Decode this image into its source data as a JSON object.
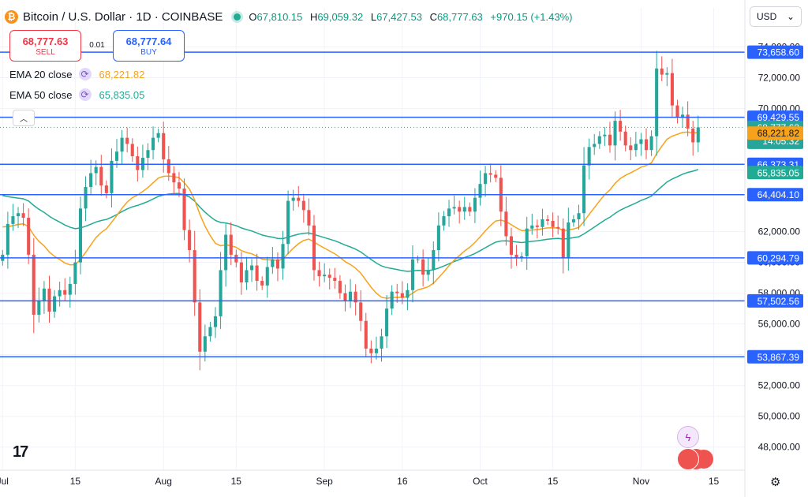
{
  "header": {
    "coin_glyph": "₿",
    "symbol": "Bitcoin / U.S. Dollar · 1D · COINBASE",
    "open_label": "O",
    "open": "67,810.15",
    "high_label": "H",
    "high": "69,059.32",
    "low_label": "L",
    "low": "67,427.53",
    "close_label": "C",
    "close": "68,777.63",
    "change": "+970.15 (+1.43%)"
  },
  "currency": {
    "value": "USD",
    "chevron": "⌄"
  },
  "trade": {
    "sell_price": "68,777.63",
    "sell_label": "SELL",
    "spread": "0.01",
    "buy_price": "68,777.64",
    "buy_label": "BUY"
  },
  "indicators": [
    {
      "name": "EMA 20 close",
      "value": "68,221.82",
      "color": "#f7a21b"
    },
    {
      "name": "EMA 50 close",
      "value": "65,835.05",
      "color": "#22ab94"
    }
  ],
  "icons": {
    "collapse": "︿",
    "cycle": "⟳",
    "settings": "⚙",
    "flash": "ϟ",
    "logo": "17"
  },
  "colors": {
    "up": "#26a69a",
    "down": "#ef5350",
    "hline": "#2962ff",
    "ema20": "#f7a21b",
    "ema50": "#22ab94",
    "grid": "#f0f3fa"
  },
  "chart_data": {
    "type": "candlestick",
    "title": "Bitcoin / U.S. Dollar · 1D · COINBASE",
    "y_ticks": [
      48000,
      50000,
      52000,
      54000,
      56000,
      58000,
      60000,
      62000,
      66000,
      70000,
      72000,
      74000
    ],
    "ylim": [
      46500,
      75000
    ],
    "x_ticks": [
      {
        "label": "Jul",
        "day": 0
      },
      {
        "label": "15",
        "day": 14
      },
      {
        "label": "Aug",
        "day": 31
      },
      {
        "label": "15",
        "day": 45
      },
      {
        "label": "Sep",
        "day": 62
      },
      {
        "label": "16",
        "day": 77
      },
      {
        "label": "Oct",
        "day": 92
      },
      {
        "label": "15",
        "day": 106
      },
      {
        "label": "Nov",
        "day": 123
      },
      {
        "label": "15",
        "day": 137
      }
    ],
    "xlim": [
      -0.5,
      143
    ],
    "horizontal_levels": [
      {
        "value": 73658.6,
        "label": "73,658.60"
      },
      {
        "value": 69429.55,
        "label": "69,429.55"
      },
      {
        "value": 66373.31,
        "label": "66,373.31"
      },
      {
        "value": 64404.1,
        "label": "64,404.10"
      },
      {
        "value": 60294.79,
        "label": "60,294.79"
      },
      {
        "value": 57502.56,
        "label": "57,502.56"
      },
      {
        "value": 53867.39,
        "label": "53,867.39"
      }
    ],
    "last_price": {
      "value": 68777.63,
      "label": "68,777.63",
      "countdown": "14:05:32"
    },
    "ema20_last": {
      "value": 68221.82,
      "label": "68,221.82"
    },
    "ema50_last": {
      "value": 65835.05,
      "label": "65,835.05"
    },
    "candle_closes": [
      60500,
      62500,
      63000,
      63200,
      62900,
      60500,
      56600,
      57500,
      58300,
      56800,
      57800,
      58200,
      57900,
      58600,
      60000,
      63500,
      64900,
      65800,
      66200,
      65000,
      64500,
      66600,
      67200,
      68100,
      67700,
      66900,
      66000,
      66800,
      67300,
      68100,
      68400,
      66700,
      65800,
      65200,
      64800,
      62100,
      60800,
      57400,
      54200,
      55200,
      55800,
      56500,
      59500,
      61800,
      60500,
      60000,
      58700,
      59500,
      59800,
      58800,
      58500,
      59700,
      60200,
      59600,
      61200,
      64000,
      64200,
      64000,
      63400,
      62400,
      59500,
      59100,
      59200,
      59000,
      58800,
      58000,
      57500,
      58100,
      57400,
      56200,
      54400,
      54100,
      54400,
      55200,
      57000,
      58100,
      58000,
      57700,
      58200,
      60200,
      60200,
      59200,
      59500,
      60800,
      62400,
      63000,
      63500,
      63600,
      63300,
      63600,
      63300,
      64200,
      65100,
      65800,
      65700,
      65500,
      63300,
      61700,
      60500,
      60300,
      60400,
      62200,
      62400,
      62300,
      62800,
      62700,
      62300,
      62200,
      60300,
      62600,
      62800,
      63200,
      66300,
      67500,
      67700,
      68200,
      68300,
      67600,
      69200,
      68500,
      67600,
      67300,
      67700,
      68000,
      67300,
      68200,
      72600,
      72200,
      72300,
      70200,
      69400,
      69600,
      68700,
      67800,
      68777.63
    ]
  }
}
